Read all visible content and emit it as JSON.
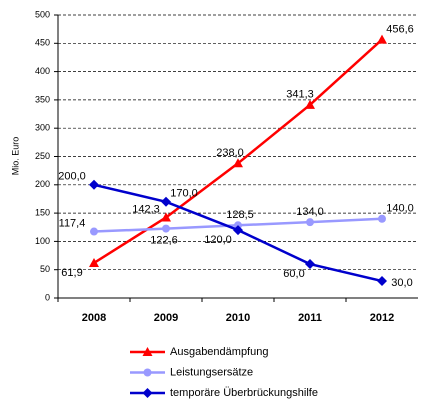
{
  "chart_data": {
    "type": "line",
    "y_label": "Mio. Euro",
    "categories": [
      "2008",
      "2009",
      "2010",
      "2011",
      "2012"
    ],
    "series": [
      {
        "name": "Ausgabendämpfung",
        "color": "#ff0000",
        "marker": "triangle",
        "values": [
          61.9,
          142.3,
          238.0,
          341.3,
          456.6
        ],
        "value_labels": [
          "61,9",
          "142,3",
          "238,0",
          "341,3",
          "456,6"
        ]
      },
      {
        "name": "Leistungsersätze",
        "color": "#9999ff",
        "marker": "circle",
        "values": [
          117.4,
          122.6,
          128.5,
          134.0,
          140.0
        ],
        "value_labels": [
          "117,4",
          "122,6",
          "128,5",
          "134,0",
          "140,0"
        ]
      },
      {
        "name": "temporäre Überbrückungshilfe",
        "color": "#0000cc",
        "marker": "diamond",
        "values": [
          200.0,
          170.0,
          120.0,
          60.0,
          30.0
        ],
        "value_labels": [
          "200,0",
          "170,0",
          "120,0",
          "60,0",
          "30,0"
        ]
      }
    ],
    "ylim": [
      0,
      500
    ],
    "yticks": [
      0,
      50,
      100,
      150,
      200,
      250,
      300,
      350,
      400,
      450,
      500
    ],
    "grid": true
  }
}
